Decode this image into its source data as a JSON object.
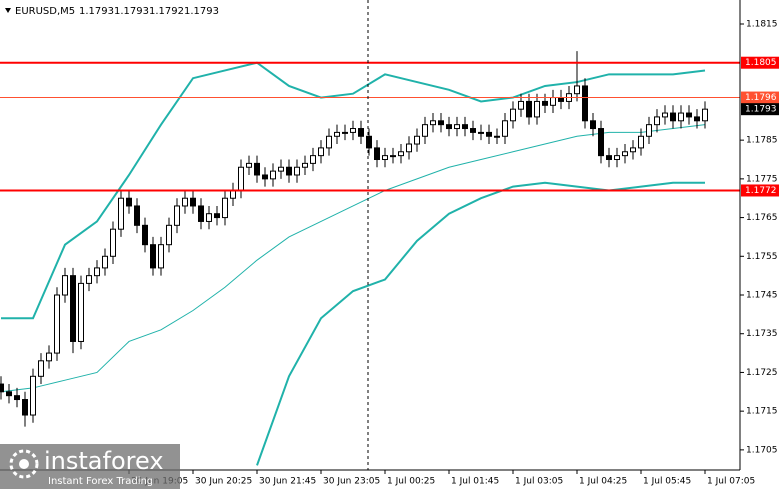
{
  "chart_data": {
    "type": "candlestick",
    "symbol": "EURUSD,M5",
    "header_ohlc": [
      1.1793,
      1.1793,
      1.1792,
      1.1793
    ],
    "ylim": [
      1.16998,
      1.18212
    ],
    "yticks": [
      1.1815,
      1.1785,
      1.1775,
      1.1765,
      1.1755,
      1.1745,
      1.1735,
      1.1725,
      1.1715,
      1.1705
    ],
    "xlim": [
      -0.125,
      92.375
    ],
    "xticks": [
      {
        "value": 16,
        "label": "30 Jun 19:05"
      },
      {
        "value": 24,
        "label": "30 Jun 20:25"
      },
      {
        "value": 32,
        "label": "30 Jun 21:45"
      },
      {
        "value": 40,
        "label": "30 Jun 23:05"
      },
      {
        "value": 48,
        "label": "1 Jul 00:25"
      },
      {
        "value": 56,
        "label": "1 Jul 01:45"
      },
      {
        "value": 64,
        "label": "1 Jul 03:05"
      },
      {
        "value": 72,
        "label": "1 Jul 04:25"
      },
      {
        "value": 80,
        "label": "1 Jul 05:45"
      },
      {
        "value": 88,
        "label": "1 Jul 07:05"
      }
    ],
    "candles": {
      "open": [
        1.1722,
        1.172,
        1.1719,
        1.1718,
        1.1714,
        1.1724,
        1.1728,
        1.173,
        1.1745,
        1.175,
        1.1733,
        1.1748,
        1.175,
        1.1752,
        1.1755,
        1.1762,
        1.177,
        1.1768,
        1.1763,
        1.1758,
        1.1752,
        1.1758,
        1.1763,
        1.1768,
        1.177,
        1.1768,
        1.1764,
        1.1766,
        1.1765,
        1.177,
        1.1772,
        1.1778,
        1.1779,
        1.1776,
        1.1775,
        1.1777,
        1.1778,
        1.1776,
        1.1778,
        1.1779,
        1.1781,
        1.1783,
        1.1786,
        1.1787,
        1.1787,
        1.1788,
        1.1786,
        1.1783,
        1.178,
        1.1781,
        1.1781,
        1.1782,
        1.1784,
        1.1786,
        1.1789,
        1.179,
        1.1789,
        1.1788,
        1.1789,
        1.1788,
        1.1787,
        1.1787,
        1.1786,
        1.1786,
        1.179,
        1.1793,
        1.1795,
        1.1791,
        1.1795,
        1.1794,
        1.1796,
        1.1795,
        1.1797,
        1.1799,
        1.179,
        1.1788,
        1.1781,
        1.178,
        1.1781,
        1.1782,
        1.1783,
        1.1786,
        1.1789,
        1.1791,
        1.1792,
        1.179,
        1.1792,
        1.1791,
        1.179
      ],
      "high": [
        1.1724,
        1.1722,
        1.1721,
        1.172,
        1.1726,
        1.173,
        1.1732,
        1.1747,
        1.1752,
        1.1752,
        1.175,
        1.1752,
        1.1754,
        1.1757,
        1.1764,
        1.1772,
        1.1772,
        1.177,
        1.1765,
        1.176,
        1.176,
        1.1765,
        1.177,
        1.1772,
        1.1772,
        1.177,
        1.1768,
        1.1768,
        1.1772,
        1.1774,
        1.178,
        1.1781,
        1.1781,
        1.1778,
        1.1779,
        1.178,
        1.178,
        1.178,
        1.1781,
        1.1783,
        1.1785,
        1.1788,
        1.1789,
        1.1789,
        1.179,
        1.179,
        1.1788,
        1.1785,
        1.1783,
        1.1783,
        1.1784,
        1.1786,
        1.1788,
        1.1791,
        1.1792,
        1.1792,
        1.1791,
        1.1791,
        1.1791,
        1.179,
        1.1789,
        1.1789,
        1.1788,
        1.1792,
        1.1795,
        1.1797,
        1.1797,
        1.1797,
        1.1797,
        1.1798,
        1.1798,
        1.1799,
        1.1808,
        1.1801,
        1.1792,
        1.179,
        1.1783,
        1.1783,
        1.1784,
        1.1785,
        1.1788,
        1.1791,
        1.1793,
        1.1794,
        1.1794,
        1.1794,
        1.1794,
        1.1793,
        1.1795
      ],
      "low": [
        1.1718,
        1.1717,
        1.1716,
        1.1711,
        1.1712,
        1.1722,
        1.1726,
        1.1728,
        1.1743,
        1.173,
        1.1731,
        1.1746,
        1.1748,
        1.175,
        1.1753,
        1.176,
        1.1766,
        1.1761,
        1.1756,
        1.175,
        1.175,
        1.1756,
        1.1761,
        1.1766,
        1.1766,
        1.1762,
        1.1762,
        1.1763,
        1.1763,
        1.1768,
        1.177,
        1.1776,
        1.1774,
        1.1773,
        1.1773,
        1.1775,
        1.1774,
        1.1774,
        1.1776,
        1.1777,
        1.1779,
        1.1781,
        1.1784,
        1.1785,
        1.1785,
        1.1784,
        1.1781,
        1.1778,
        1.1778,
        1.1779,
        1.1779,
        1.178,
        1.1782,
        1.1784,
        1.1787,
        1.1787,
        1.1786,
        1.1786,
        1.1786,
        1.1785,
        1.1785,
        1.1784,
        1.1784,
        1.1784,
        1.1788,
        1.1791,
        1.1789,
        1.1789,
        1.1792,
        1.1792,
        1.1793,
        1.1793,
        1.1795,
        1.1788,
        1.1786,
        1.1779,
        1.1778,
        1.1778,
        1.1779,
        1.178,
        1.1781,
        1.1784,
        1.1787,
        1.1789,
        1.1788,
        1.1788,
        1.1789,
        1.1788,
        1.1788
      ],
      "close": [
        1.172,
        1.1719,
        1.1718,
        1.1714,
        1.1724,
        1.1728,
        1.173,
        1.1745,
        1.175,
        1.1733,
        1.1748,
        1.175,
        1.1752,
        1.1755,
        1.1762,
        1.177,
        1.1768,
        1.1763,
        1.1758,
        1.1752,
        1.1758,
        1.1763,
        1.1768,
        1.177,
        1.1768,
        1.1764,
        1.1766,
        1.1765,
        1.177,
        1.1772,
        1.1778,
        1.1779,
        1.1776,
        1.1775,
        1.1777,
        1.1778,
        1.1776,
        1.1778,
        1.1779,
        1.1781,
        1.1783,
        1.1786,
        1.1787,
        1.1787,
        1.1788,
        1.1786,
        1.1783,
        1.178,
        1.1781,
        1.1781,
        1.1782,
        1.1784,
        1.1786,
        1.1789,
        1.179,
        1.1789,
        1.1788,
        1.1789,
        1.1788,
        1.1787,
        1.1787,
        1.1786,
        1.1786,
        1.179,
        1.1793,
        1.1795,
        1.1791,
        1.1795,
        1.1794,
        1.1796,
        1.1795,
        1.1797,
        1.1799,
        1.179,
        1.1788,
        1.1781,
        1.178,
        1.1781,
        1.1782,
        1.1783,
        1.1786,
        1.1789,
        1.1791,
        1.1792,
        1.179,
        1.1792,
        1.1791,
        1.179,
        1.1793
      ],
      "bull_fill": "#ffffff",
      "bear_fill": "#000000",
      "color": "#000000"
    },
    "line_x": [
      0,
      4,
      8,
      12,
      16,
      20,
      24,
      28,
      32,
      36,
      40,
      44,
      48,
      52,
      56,
      60,
      64,
      68,
      72,
      76,
      80,
      84,
      88
    ],
    "lines": [
      {
        "color": "#20b2aa",
        "width": 2,
        "values": [
          1.1739,
          1.1739,
          1.1758,
          1.1764,
          1.1776,
          1.1789,
          1.1801,
          1.1803,
          1.1805,
          1.1799,
          1.1796,
          1.1797,
          1.1802,
          1.18,
          1.1798,
          1.1795,
          1.1796,
          1.1799,
          1.18,
          1.1802,
          1.1802,
          1.1802,
          1.1803
        ]
      },
      {
        "color": "#20b2aa",
        "width": 1,
        "values": [
          1.172,
          1.1721,
          1.1723,
          1.1725,
          1.1733,
          1.1736,
          1.1741,
          1.1747,
          1.1754,
          1.176,
          1.1764,
          1.1768,
          1.1772,
          1.1775,
          1.1778,
          1.178,
          1.1782,
          1.1784,
          1.1786,
          1.1787,
          1.1787,
          1.1788,
          1.1789
        ]
      },
      {
        "color": "#20b2aa",
        "width": 2,
        "values": [
          null,
          null,
          null,
          null,
          null,
          null,
          null,
          null,
          1.1701,
          1.1724,
          1.1739,
          1.1746,
          1.1749,
          1.1759,
          1.1766,
          1.177,
          1.1773,
          1.1774,
          1.1773,
          1.1772,
          1.1773,
          1.1774,
          1.1774
        ]
      }
    ],
    "levels": [
      {
        "value": 1.1805,
        "color": "#ff0000",
        "width": 2
      },
      {
        "value": 1.1796,
        "color": "#ff5030",
        "width": 1
      },
      {
        "value": 1.1772,
        "color": "#ff0000",
        "width": 2
      }
    ],
    "last_price": 1.1793,
    "watermark": {
      "brand": "instaforex",
      "tagline": "Instant Forex Trading"
    }
  }
}
